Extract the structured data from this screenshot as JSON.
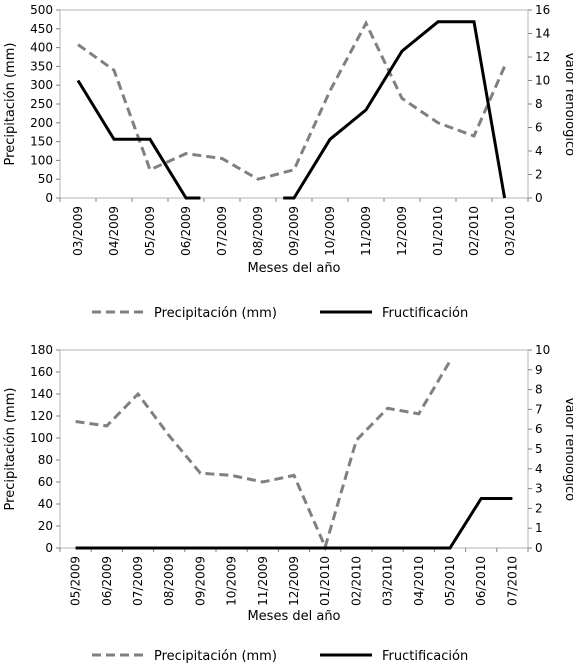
{
  "chart_data": [
    {
      "type": "line",
      "xlabel": "Meses del año",
      "ylabel": "Precipitación (mm)",
      "y2label": "Valor fenológico",
      "categories": [
        "03/2009",
        "04/2009",
        "05/2009",
        "06/2009",
        "07/2009",
        "08/2009",
        "09/2009",
        "10/2009",
        "11/2009",
        "12/2009",
        "01/2010",
        "02/2010",
        "03/2010"
      ],
      "ylim": [
        0,
        500
      ],
      "yticks": [
        "0",
        "50",
        "100",
        "150",
        "200",
        "250",
        "300",
        "350",
        "400",
        "450",
        "500"
      ],
      "y2lim": [
        0,
        16
      ],
      "y2ticks": [
        "0",
        "2",
        "4",
        "6",
        "8",
        "10",
        "12",
        "14",
        "16"
      ],
      "series": [
        {
          "name": "Precipitación (mm)",
          "axis": "left",
          "style": "dashed",
          "color": "#808080",
          "points": [
            [
              0,
              408
            ],
            [
              1,
              340
            ],
            [
              2,
              75
            ],
            [
              3,
              118
            ],
            [
              4,
              105
            ],
            [
              5,
              50
            ],
            [
              6,
              75
            ],
            [
              7,
              285
            ],
            [
              8,
              465
            ],
            [
              9,
              265
            ],
            [
              10,
              200
            ],
            [
              11,
              165
            ],
            [
              11.85,
              350
            ]
          ]
        },
        {
          "name": "Fructificación",
          "axis": "right",
          "style": "solid",
          "color": "#000000",
          "points": [
            [
              0,
              10
            ],
            [
              1,
              5
            ],
            [
              2,
              5
            ],
            [
              3,
              0
            ],
            [
              3.4,
              0
            ]
          ],
          "points2": [
            [
              5.7,
              0
            ],
            [
              6,
              0
            ],
            [
              7,
              5
            ],
            [
              8,
              7.5
            ],
            [
              9,
              12.5
            ],
            [
              10,
              15
            ],
            [
              11,
              15
            ],
            [
              11.85,
              0
            ]
          ]
        }
      ],
      "legend_position": "bottom"
    },
    {
      "type": "line",
      "xlabel": "Meses del año",
      "ylabel": "Precipitación (mm)",
      "y2label": "Valor fenológico",
      "categories": [
        "05/2009",
        "06/2009",
        "07/2009",
        "08/2009",
        "09/2009",
        "10/2009",
        "11/2009",
        "12/2009",
        "01/2010",
        "02/2010",
        "03/2010",
        "04/2010",
        "05/2010",
        "06/2010",
        "07/2010"
      ],
      "ylim": [
        0,
        180
      ],
      "yticks": [
        "0",
        "20",
        "40",
        "60",
        "80",
        "100",
        "120",
        "140",
        "160",
        "180"
      ],
      "y2lim": [
        0,
        10
      ],
      "y2ticks": [
        "0",
        "1",
        "2",
        "3",
        "4",
        "5",
        "6",
        "7",
        "8",
        "9",
        "10"
      ],
      "series": [
        {
          "name": "Precipitación (mm)",
          "axis": "left",
          "style": "dashed",
          "color": "#808080",
          "points": [
            [
              0,
              115
            ],
            [
              1,
              111
            ],
            [
              2,
              140
            ],
            [
              3,
              102
            ],
            [
              4,
              68
            ],
            [
              5,
              66
            ],
            [
              6,
              60
            ],
            [
              7,
              66
            ],
            [
              8,
              1
            ],
            [
              9,
              98
            ],
            [
              10,
              127
            ],
            [
              11,
              122
            ],
            [
              12,
              170
            ]
          ]
        },
        {
          "name": "Fructificación",
          "axis": "right",
          "style": "solid",
          "color": "#000000",
          "points": [
            [
              0,
              0
            ],
            [
              1,
              0
            ],
            [
              2,
              0
            ],
            [
              3,
              0
            ],
            [
              4,
              0
            ],
            [
              5,
              0
            ],
            [
              6,
              0
            ],
            [
              7,
              0
            ],
            [
              8,
              0
            ],
            [
              9,
              0
            ],
            [
              10,
              0
            ],
            [
              11,
              0
            ],
            [
              12,
              0
            ],
            [
              13,
              2.5
            ],
            [
              14,
              2.5
            ]
          ]
        }
      ],
      "legend_position": "bottom"
    }
  ]
}
